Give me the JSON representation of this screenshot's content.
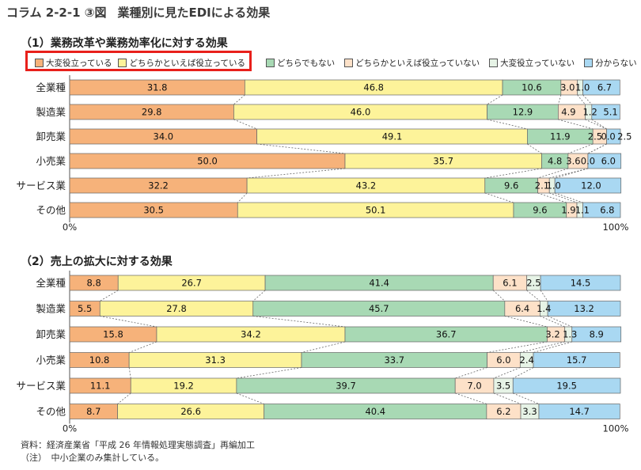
{
  "figure_title": {
    "number": "コラム 2-2-1 ③図",
    "text": "業種別に見たEDIによる効果"
  },
  "legend": [
    {
      "label": "大変役立っている",
      "color": "#f6b27a"
    },
    {
      "label": "どちらかといえば役立っている",
      "color": "#fdf39a"
    },
    {
      "label": "どちらでもない",
      "color": "#a8d9b4"
    },
    {
      "label": "どちらかといえば役立っていない",
      "color": "#fde1c8"
    },
    {
      "label": "大変役立っていない",
      "color": "#e6f3e6"
    },
    {
      "label": "分からない",
      "color": "#a9d8f2"
    }
  ],
  "chart_data": [
    {
      "type": "bar",
      "orientation": "horizontal",
      "stacked": true,
      "title": "（1）業務改革や業務効率化に対する効果",
      "categories": [
        "全業種",
        "製造業",
        "卸売業",
        "小売業",
        "サービス業",
        "その他"
      ],
      "series": [
        {
          "name": "大変役立っている",
          "values": [
            31.8,
            29.8,
            34.0,
            50.0,
            32.2,
            30.5
          ]
        },
        {
          "name": "どちらかといえば役立っている",
          "values": [
            46.8,
            46.0,
            49.1,
            35.7,
            43.2,
            50.1
          ]
        },
        {
          "name": "どちらでもない",
          "values": [
            10.6,
            12.9,
            11.9,
            4.8,
            9.6,
            9.6
          ]
        },
        {
          "name": "どちらかといえば役立っていない",
          "values": [
            3.0,
            4.9,
            2.5,
            3.6,
            2.1,
            1.9
          ]
        },
        {
          "name": "大変役立っていない",
          "values": [
            1.0,
            1.2,
            0.0,
            0.0,
            1.0,
            1.1
          ]
        },
        {
          "name": "分からない",
          "values": [
            6.7,
            5.1,
            2.5,
            6.0,
            12.0,
            6.8
          ]
        }
      ],
      "xlim": [
        0,
        100
      ],
      "axis_labels": [
        "0%",
        "100%"
      ]
    },
    {
      "type": "bar",
      "orientation": "horizontal",
      "stacked": true,
      "title": "（2）売上の拡大に対する効果",
      "categories": [
        "全業種",
        "製造業",
        "卸売業",
        "小売業",
        "サービス業",
        "その他"
      ],
      "series": [
        {
          "name": "大変役立っている",
          "values": [
            8.8,
            5.5,
            15.8,
            10.8,
            11.1,
            8.7
          ]
        },
        {
          "name": "どちらかといえば役立っている",
          "values": [
            26.7,
            27.8,
            34.2,
            31.3,
            19.2,
            26.6
          ]
        },
        {
          "name": "どちらでもない",
          "values": [
            41.4,
            45.7,
            36.7,
            33.7,
            39.7,
            40.4
          ]
        },
        {
          "name": "どちらかといえば役立っていない",
          "values": [
            6.1,
            6.4,
            3.2,
            6.0,
            7.0,
            6.2
          ]
        },
        {
          "name": "大変役立っていない",
          "values": [
            2.5,
            1.4,
            1.3,
            2.4,
            3.5,
            3.3
          ]
        },
        {
          "name": "分からない",
          "values": [
            14.5,
            13.2,
            8.9,
            15.7,
            19.5,
            14.7
          ]
        }
      ],
      "xlim": [
        0,
        100
      ],
      "axis_labels": [
        "0%",
        "100%"
      ]
    }
  ],
  "footnotes": {
    "source": "資料：経済産業省「平成 26 年情報処理実態調査」再編加工",
    "note": "（注）　中小企業のみ集計している。"
  }
}
